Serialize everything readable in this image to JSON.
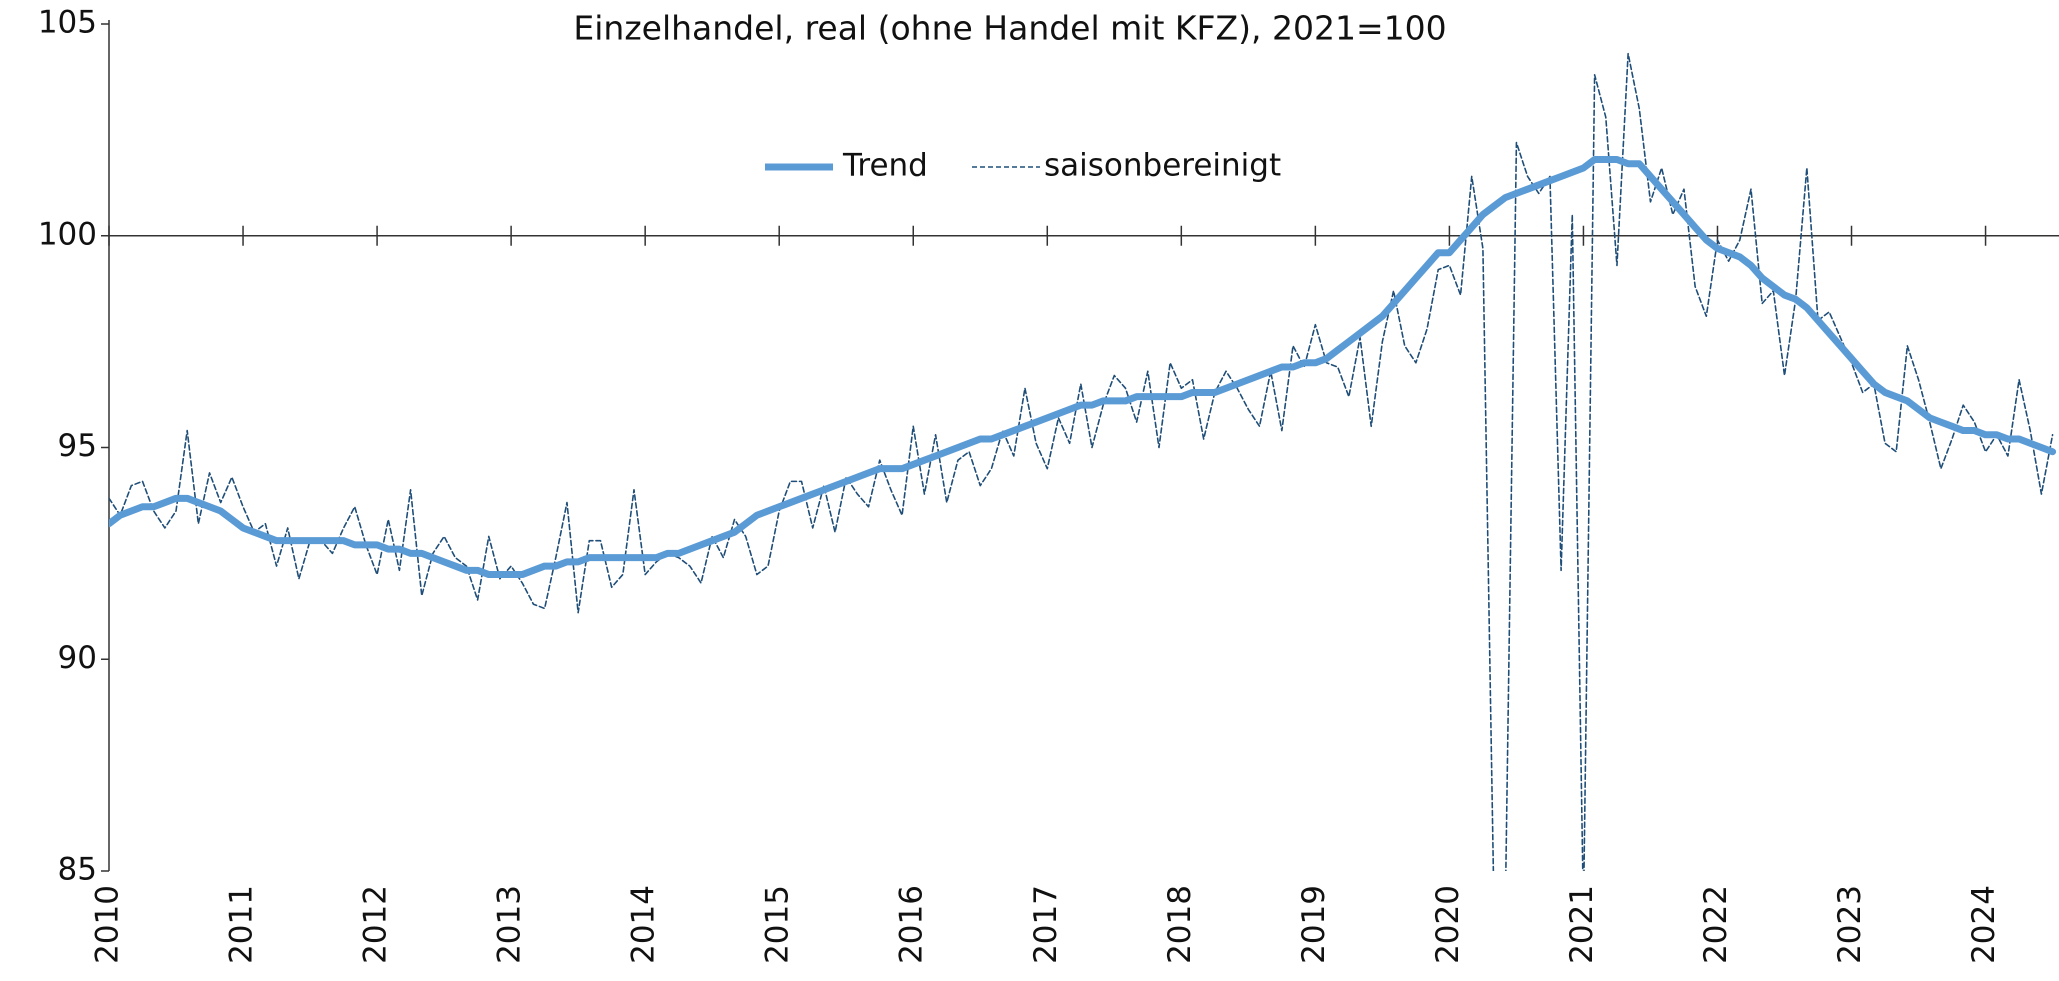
{
  "chart_data": {
    "type": "line",
    "title": "Einzelhandel, real (ohne Handel mit KFZ), 2021=100",
    "categories": [
      "2010",
      null,
      null,
      null,
      null,
      null,
      null,
      null,
      null,
      null,
      null,
      null,
      "2011",
      null,
      null,
      null,
      null,
      null,
      null,
      null,
      null,
      null,
      null,
      null,
      "2012",
      null,
      null,
      null,
      null,
      null,
      null,
      null,
      null,
      null,
      null,
      null,
      "2013",
      null,
      null,
      null,
      null,
      null,
      null,
      null,
      null,
      null,
      null,
      null,
      "2014",
      null,
      null,
      null,
      null,
      null,
      null,
      null,
      null,
      null,
      null,
      null,
      "2015",
      null,
      null,
      null,
      null,
      null,
      null,
      null,
      null,
      null,
      null,
      null,
      "2016",
      null,
      null,
      null,
      null,
      null,
      null,
      null,
      null,
      null,
      null,
      null,
      "2017",
      null,
      null,
      null,
      null,
      null,
      null,
      null,
      null,
      null,
      null,
      null,
      "2018",
      null,
      null,
      null,
      null,
      null,
      null,
      null,
      null,
      null,
      null,
      null,
      "2019",
      null,
      null,
      null,
      null,
      null,
      null,
      null,
      null,
      null,
      null,
      null,
      "2020",
      null,
      null,
      null,
      null,
      null,
      null,
      null,
      null,
      null,
      null,
      null,
      "2021",
      null,
      null,
      null,
      null,
      null,
      null,
      null,
      null,
      null,
      null,
      null,
      "2022",
      null,
      null,
      null,
      null,
      null,
      null,
      null,
      null,
      null,
      null,
      null,
      "2023",
      null,
      null,
      null,
      null,
      null,
      null,
      null,
      null,
      null,
      null,
      null,
      "2024",
      null,
      null,
      null,
      null,
      null,
      null
    ],
    "series": [
      {
        "name": "Trend",
        "color": "#5b9bd5",
        "style": "solid",
        "values": [
          93.2,
          93.4,
          93.5,
          93.6,
          93.6,
          93.7,
          93.8,
          93.8,
          93.7,
          93.6,
          93.5,
          93.3,
          93.1,
          93.0,
          92.9,
          92.8,
          92.8,
          92.8,
          92.8,
          92.8,
          92.8,
          92.8,
          92.7,
          92.7,
          92.7,
          92.6,
          92.6,
          92.5,
          92.5,
          92.4,
          92.3,
          92.2,
          92.1,
          92.1,
          92.0,
          92.0,
          92.0,
          92.0,
          92.1,
          92.2,
          92.2,
          92.3,
          92.3,
          92.4,
          92.4,
          92.4,
          92.4,
          92.4,
          92.4,
          92.4,
          92.5,
          92.5,
          92.6,
          92.7,
          92.8,
          92.9,
          93.0,
          93.2,
          93.4,
          93.5,
          93.6,
          93.7,
          93.8,
          93.9,
          94.0,
          94.1,
          94.2,
          94.3,
          94.4,
          94.5,
          94.5,
          94.5,
          94.6,
          94.7,
          94.8,
          94.9,
          95.0,
          95.1,
          95.2,
          95.2,
          95.3,
          95.4,
          95.5,
          95.6,
          95.7,
          95.8,
          95.9,
          96.0,
          96.0,
          96.1,
          96.1,
          96.1,
          96.2,
          96.2,
          96.2,
          96.2,
          96.2,
          96.3,
          96.3,
          96.3,
          96.4,
          96.5,
          96.6,
          96.7,
          96.8,
          96.9,
          96.9,
          97.0,
          97.0,
          97.1,
          97.3,
          97.5,
          97.7,
          97.9,
          98.1,
          98.4,
          98.7,
          99.0,
          99.3,
          99.6,
          99.6,
          99.9,
          100.2,
          100.5,
          100.7,
          100.9,
          101.0,
          101.1,
          101.2,
          101.3,
          101.4,
          101.5,
          101.6,
          101.8,
          101.8,
          101.8,
          101.7,
          101.7,
          101.4,
          101.1,
          100.8,
          100.5,
          100.2,
          99.9,
          99.7,
          99.6,
          99.5,
          99.3,
          99.0,
          98.8,
          98.6,
          98.5,
          98.3,
          98.0,
          97.7,
          97.4,
          97.1,
          96.8,
          96.5,
          96.3,
          96.2,
          96.1,
          95.9,
          95.7,
          95.6,
          95.5,
          95.4,
          95.4,
          95.3,
          95.3,
          95.2,
          95.2,
          95.1,
          95.0,
          94.9
        ]
      },
      {
        "name": "saisonbereinigt",
        "color": "#1f4e79",
        "style": "dashed",
        "values": [
          93.8,
          93.4,
          94.1,
          94.2,
          93.5,
          93.1,
          93.5,
          95.4,
          93.2,
          94.4,
          93.7,
          94.3,
          93.6,
          93.0,
          93.2,
          92.2,
          93.1,
          91.9,
          92.8,
          92.8,
          92.5,
          93.1,
          93.6,
          92.7,
          92.0,
          93.3,
          92.1,
          94.0,
          91.5,
          92.5,
          92.9,
          92.4,
          92.2,
          91.4,
          92.9,
          91.9,
          92.2,
          91.8,
          91.3,
          91.2,
          92.4,
          93.7,
          91.1,
          92.8,
          92.8,
          91.7,
          92.0,
          94.0,
          92.0,
          92.3,
          92.5,
          92.4,
          92.2,
          91.8,
          92.9,
          92.4,
          93.3,
          92.9,
          92.0,
          92.2,
          93.5,
          94.2,
          94.2,
          93.1,
          94.1,
          93.0,
          94.3,
          93.9,
          93.6,
          94.7,
          94.0,
          93.4,
          95.5,
          93.9,
          95.3,
          93.7,
          94.7,
          94.9,
          94.1,
          94.5,
          95.4,
          94.8,
          96.4,
          95.1,
          94.5,
          95.7,
          95.1,
          96.5,
          95.0,
          96.0,
          96.7,
          96.4,
          95.6,
          96.8,
          95.0,
          97.0,
          96.4,
          96.6,
          95.2,
          96.3,
          96.8,
          96.4,
          95.9,
          95.5,
          96.8,
          95.4,
          97.4,
          96.9,
          97.9,
          97.0,
          96.9,
          96.2,
          97.6,
          95.5,
          97.5,
          98.7,
          97.4,
          97.0,
          97.8,
          99.2,
          99.3,
          98.6,
          101.4,
          99.7,
          84,
          84,
          102.2,
          101.4,
          101.0,
          101.4,
          92.1,
          100.5,
          84,
          103.8,
          102.8,
          99.3,
          104.3,
          103.0,
          100.8,
          101.6,
          100.5,
          101.1,
          98.8,
          98.1,
          99.9,
          99.4,
          99.9,
          101.1,
          98.4,
          98.7,
          96.7,
          98.5,
          101.6,
          98.0,
          98.2,
          97.6,
          97.0,
          96.3,
          96.5,
          95.1,
          94.9,
          97.4,
          96.6,
          95.6,
          94.5,
          95.2,
          96.0,
          95.6,
          94.9,
          95.3,
          94.8,
          96.6,
          95.4,
          93.9,
          95.3
        ]
      }
    ],
    "ylim": [
      85,
      105
    ],
    "yticks": [
      85,
      90,
      95,
      100,
      105
    ],
    "xaxis_crosses": 100,
    "grid": false,
    "legend": "top"
  }
}
